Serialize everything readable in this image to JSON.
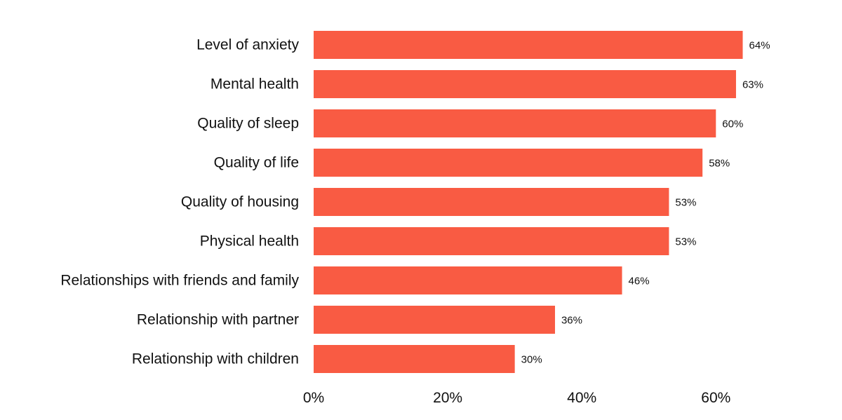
{
  "chart_data": {
    "type": "bar",
    "orientation": "horizontal",
    "title": "",
    "xlabel": "",
    "ylabel": "",
    "categories": [
      "Level of anxiety",
      "Mental health",
      "Quality of sleep",
      "Quality of life",
      "Quality of housing",
      "Physical health",
      "Relationships with friends and family",
      "Relationship with partner",
      "Relationship with children"
    ],
    "values": [
      64,
      63,
      60,
      58,
      53,
      53,
      46,
      36,
      30
    ],
    "value_labels": [
      "64%",
      "63%",
      "60%",
      "58%",
      "53%",
      "53%",
      "46%",
      "36%",
      "30%"
    ],
    "xlim": [
      0,
      64
    ],
    "x_ticks": [
      0,
      20,
      40,
      60
    ],
    "x_tick_labels": [
      "0%",
      "20%",
      "40%",
      "60%"
    ],
    "grid": false,
    "legend": "none",
    "bar_color": "#f95b43",
    "text_color": "#111111"
  }
}
